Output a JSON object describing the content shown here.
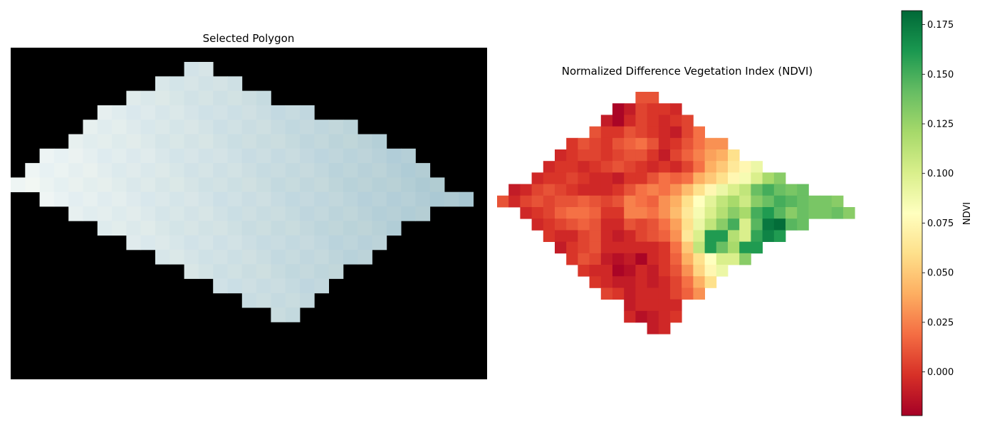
{
  "figure": {
    "left_panel": {
      "title": "Selected Polygon"
    },
    "right_panel": {
      "title": "Normalized Difference Vegetation Index (NDVI)"
    },
    "colorbar": {
      "label": "NDVI",
      "colormap": "RdYlGn",
      "ticks": [
        "0.000",
        "0.025",
        "0.050",
        "0.075",
        "0.100",
        "0.125",
        "0.150",
        "0.175"
      ],
      "range": [
        -0.022,
        0.182
      ]
    },
    "colors": {
      "rgb_background": "#000000",
      "rgb_light": "#eef4f4",
      "rgb_bluish": "#aac4d0",
      "ndvi_low": "#a50026",
      "ndvi_mid": "#ffffbf",
      "ndvi_high": "#006837"
    }
  },
  "chart_data": [
    {
      "type": "heatmap",
      "title": "Selected Polygon",
      "description_encoding": "RGB true-color raster; masked area black",
      "rows": [
        "00000000000011000000000000000000",
        "00000000001111110000000000000000",
        "00000000111111111100000000000000",
        "00000011111111111111100000000000",
        "00000111111111111111111100000000",
        "00001111111111111111111111000000",
        "00111111111111111111111111110000",
        "01111111111111111111111111111000",
        "11111111111111111111111111111100",
        "00111111111111111111111111111111",
        "00001111111111111111111111111000",
        "00000011111111111111111111100000",
        "00000000111111111111111111000000",
        "00000000001111111111111110000000",
        "00000000000011111111111000000000",
        "00000000000000111111110000000000",
        "00000000000000001111100000000000",
        "00000000000000000011000000000000"
      ]
    },
    {
      "type": "heatmap",
      "title": "Normalized Difference Vegetation Index (NDVI)",
      "colorbar_label": "NDVI",
      "vmin": -0.022,
      "vmax": 0.182,
      "null": "masked",
      "values": [
        [
          null,
          null,
          null,
          null,
          null,
          null,
          null,
          null,
          null,
          null,
          null,
          null,
          0.01,
          0.01,
          null,
          null,
          null,
          null,
          null,
          null,
          null,
          null,
          null,
          null,
          null,
          null,
          null,
          null,
          null,
          null,
          null,
          null
        ],
        [
          null,
          null,
          null,
          null,
          null,
          null,
          null,
          null,
          null,
          null,
          -0.02,
          -0.01,
          0.005,
          0.0,
          0.0,
          -0.005,
          null,
          null,
          null,
          null,
          null,
          null,
          null,
          null,
          null,
          null,
          null,
          null,
          null,
          null,
          null,
          null
        ],
        [
          null,
          null,
          null,
          null,
          null,
          null,
          null,
          null,
          null,
          -0.01,
          -0.02,
          -0.005,
          0.005,
          0.0,
          -0.005,
          0.0,
          0.005,
          null,
          null,
          null,
          null,
          null,
          null,
          null,
          null,
          null,
          null,
          null,
          null,
          null,
          null,
          null
        ],
        [
          null,
          null,
          null,
          null,
          null,
          null,
          null,
          null,
          0.01,
          0.0,
          0.0,
          0.01,
          0.005,
          0.0,
          -0.005,
          -0.01,
          0.005,
          0.02,
          null,
          null,
          null,
          null,
          null,
          null,
          null,
          null,
          null,
          null,
          null,
          null,
          null,
          null
        ],
        [
          null,
          null,
          null,
          null,
          null,
          null,
          0.0,
          0.01,
          0.005,
          0.0,
          0.01,
          0.015,
          0.02,
          0.01,
          -0.005,
          0.0,
          0.01,
          0.02,
          0.03,
          0.03,
          null,
          null,
          null,
          null,
          null,
          null,
          null,
          null,
          null,
          null,
          null,
          null
        ],
        [
          null,
          null,
          null,
          null,
          null,
          -0.005,
          0.0,
          0.005,
          0.005,
          0.0,
          0.005,
          0.01,
          0.01,
          0.0,
          -0.01,
          0.005,
          0.015,
          0.025,
          0.035,
          0.04,
          0.06,
          null,
          null,
          null,
          null,
          null,
          null,
          null,
          null,
          null,
          null,
          null
        ],
        [
          null,
          null,
          null,
          null,
          -0.005,
          0.0,
          0.0,
          -0.005,
          0.0,
          0.005,
          0.01,
          0.005,
          0.0,
          -0.005,
          0.0,
          -0.005,
          0.005,
          0.02,
          0.04,
          0.05,
          0.065,
          0.075,
          0.09,
          null,
          null,
          null,
          null,
          null,
          null,
          null,
          null,
          null
        ],
        [
          null,
          null,
          null,
          -0.005,
          0.0,
          0.0,
          0.005,
          0.0,
          -0.005,
          -0.005,
          -0.01,
          0.0,
          0.0,
          0.01,
          0.02,
          0.015,
          0.02,
          0.04,
          0.05,
          0.06,
          0.075,
          0.085,
          0.1,
          0.12,
          0.13,
          null,
          null,
          null,
          null,
          null,
          null,
          null
        ],
        [
          null,
          -0.01,
          -0.005,
          0.005,
          0.01,
          0.005,
          0.0,
          -0.005,
          -0.005,
          -0.005,
          0.0,
          0.01,
          0.02,
          0.025,
          0.02,
          0.03,
          0.045,
          0.06,
          0.075,
          0.09,
          0.1,
          0.11,
          0.14,
          0.15,
          0.14,
          0.135,
          0.14,
          null,
          null,
          null,
          null,
          null
        ],
        [
          0.01,
          -0.005,
          0.005,
          0.01,
          0.005,
          0.01,
          0.01,
          0.015,
          0.01,
          0.005,
          0.01,
          0.025,
          0.02,
          0.015,
          0.03,
          0.04,
          0.06,
          0.08,
          0.095,
          0.11,
          0.12,
          0.105,
          0.13,
          0.14,
          0.15,
          0.145,
          0.14,
          0.135,
          0.135,
          0.13,
          null,
          null
        ],
        [
          null,
          null,
          -0.005,
          0.0,
          0.005,
          0.015,
          0.02,
          0.02,
          0.015,
          0.0,
          0.0,
          0.025,
          0.025,
          0.02,
          0.03,
          0.045,
          0.065,
          0.085,
          0.1,
          0.115,
          0.13,
          0.12,
          0.15,
          0.16,
          0.145,
          0.13,
          0.14,
          0.135,
          0.135,
          0.14,
          0.13,
          null
        ],
        [
          null,
          null,
          null,
          -0.005,
          0.0,
          0.005,
          0.01,
          0.015,
          0.01,
          -0.005,
          -0.005,
          0.01,
          0.005,
          0.01,
          0.02,
          0.035,
          0.06,
          0.09,
          0.11,
          0.13,
          0.15,
          0.1,
          0.145,
          0.175,
          0.18,
          0.145,
          0.14,
          null,
          null,
          null,
          null,
          null
        ],
        [
          null,
          null,
          null,
          null,
          0.0,
          -0.005,
          -0.005,
          0.005,
          0.01,
          -0.005,
          -0.01,
          -0.005,
          0.005,
          0.01,
          0.015,
          0.03,
          0.065,
          0.1,
          0.16,
          0.16,
          0.115,
          0.1,
          0.155,
          0.17,
          0.16,
          null,
          null,
          null,
          null,
          null,
          null,
          null
        ],
        [
          null,
          null,
          null,
          null,
          null,
          -0.01,
          0.0,
          0.005,
          0.01,
          -0.005,
          -0.005,
          -0.005,
          -0.005,
          -0.005,
          0.0,
          0.02,
          0.05,
          0.11,
          0.16,
          0.14,
          0.12,
          0.16,
          0.16,
          null,
          null,
          null,
          null,
          null,
          null,
          null,
          null,
          null
        ],
        [
          null,
          null,
          null,
          null,
          null,
          null,
          0.0,
          0.01,
          0.005,
          -0.01,
          -0.015,
          -0.01,
          -0.02,
          -0.005,
          0.0,
          0.015,
          0.04,
          0.06,
          0.08,
          0.1,
          0.1,
          0.13,
          null,
          null,
          null,
          null,
          null,
          null,
          null,
          null,
          null,
          null
        ],
        [
          null,
          null,
          null,
          null,
          null,
          null,
          null,
          0.0,
          -0.005,
          -0.005,
          -0.02,
          -0.015,
          -0.005,
          -0.01,
          0.0,
          0.01,
          0.03,
          0.055,
          0.075,
          0.09,
          null,
          null,
          null,
          null,
          null,
          null,
          null,
          null,
          null,
          null,
          null,
          null
        ],
        [
          null,
          null,
          null,
          null,
          null,
          null,
          null,
          null,
          0.0,
          -0.005,
          -0.01,
          -0.01,
          -0.005,
          -0.01,
          -0.005,
          0.005,
          0.02,
          0.04,
          0.06,
          null,
          null,
          null,
          null,
          null,
          null,
          null,
          null,
          null,
          null,
          null,
          null,
          null
        ],
        [
          null,
          null,
          null,
          null,
          null,
          null,
          null,
          null,
          null,
          0.005,
          0.0,
          -0.01,
          -0.005,
          -0.005,
          -0.005,
          0.005,
          0.015,
          0.03,
          null,
          null,
          null,
          null,
          null,
          null,
          null,
          null,
          null,
          null,
          null,
          null,
          null,
          null
        ],
        [
          null,
          null,
          null,
          null,
          null,
          null,
          null,
          null,
          null,
          null,
          null,
          -0.01,
          -0.005,
          -0.005,
          -0.005,
          -0.005,
          null,
          null,
          null,
          null,
          null,
          null,
          null,
          null,
          null,
          null,
          null,
          null,
          null,
          null,
          null,
          null
        ],
        [
          null,
          null,
          null,
          null,
          null,
          null,
          null,
          null,
          null,
          null,
          null,
          -0.005,
          -0.015,
          -0.01,
          -0.005,
          0.0,
          null,
          null,
          null,
          null,
          null,
          null,
          null,
          null,
          null,
          null,
          null,
          null,
          null,
          null,
          null,
          null
        ],
        [
          null,
          null,
          null,
          null,
          null,
          null,
          null,
          null,
          null,
          null,
          null,
          null,
          null,
          -0.01,
          -0.005,
          null,
          null,
          null,
          null,
          null,
          null,
          null,
          null,
          null,
          null,
          null,
          null,
          null,
          null,
          null,
          null,
          null
        ]
      ]
    }
  ]
}
